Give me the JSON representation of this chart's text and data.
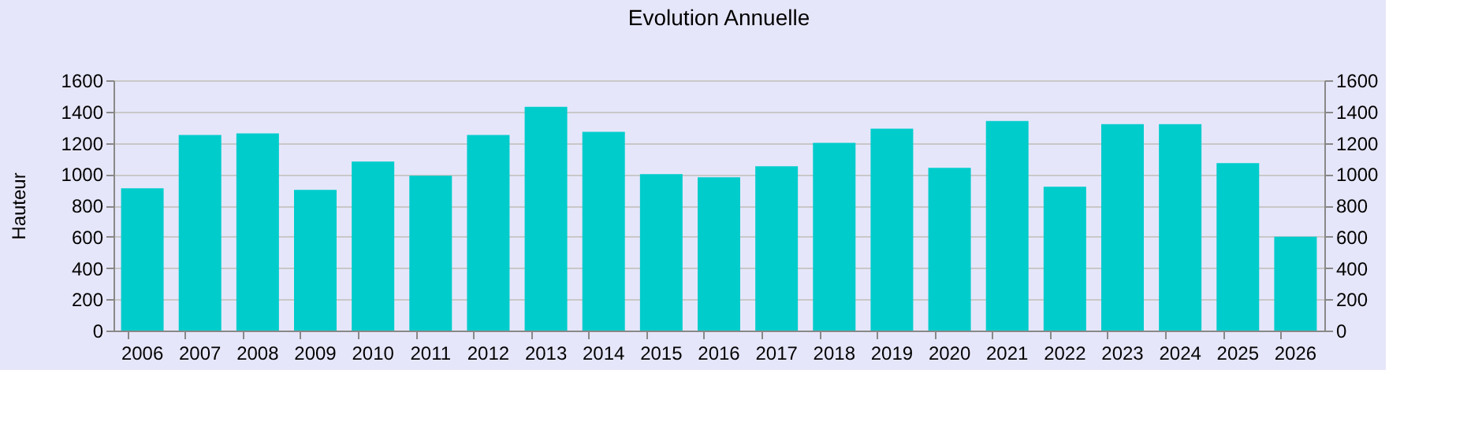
{
  "chart_data": {
    "type": "bar",
    "title": "Evolution Annuelle",
    "ylabel": "Hauteur",
    "categories": [
      "2006",
      "2007",
      "2008",
      "2009",
      "2010",
      "2011",
      "2012",
      "2013",
      "2014",
      "2015",
      "2016",
      "2017",
      "2018",
      "2019",
      "2020",
      "2021",
      "2022",
      "2023",
      "2024",
      "2025",
      "2026"
    ],
    "values": [
      910,
      1250,
      1260,
      900,
      1080,
      990,
      1250,
      1430,
      1270,
      1000,
      980,
      1050,
      1200,
      1290,
      1040,
      1340,
      920,
      1320,
      1320,
      1070,
      600
    ],
    "color": "#00cccc",
    "ylim": [
      0,
      1600
    ],
    "yticks": [
      0,
      200,
      400,
      600,
      800,
      1000,
      1200,
      1400,
      1600
    ],
    "y2lim": [
      0,
      1600
    ],
    "y2ticks": [
      0,
      200,
      400,
      600,
      800,
      1000,
      1200,
      1400,
      1600
    ],
    "grid": "y"
  }
}
